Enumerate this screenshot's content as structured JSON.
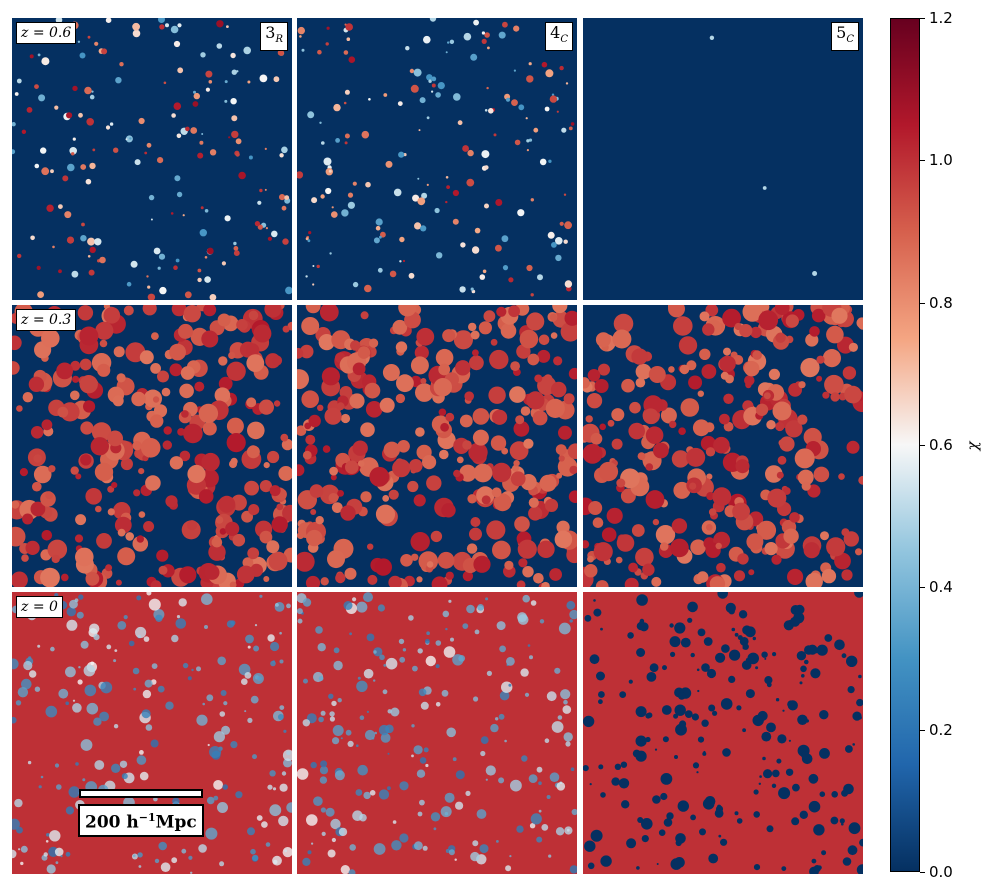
{
  "chart_data": {
    "type": "heatmap",
    "title": "",
    "layout": "3x3 panel grid of 2D field slices",
    "rows": [
      {
        "redshift_label": "z = 0.6"
      },
      {
        "redshift_label": "z = 0.3"
      },
      {
        "redshift_label": "z = 0"
      }
    ],
    "columns": [
      {
        "model": "3",
        "sub": "R"
      },
      {
        "model": "4",
        "sub": "C"
      },
      {
        "model": "5",
        "sub": "C"
      }
    ],
    "panel_mean_chi": [
      [
        0.08,
        0.08,
        0.0
      ],
      [
        0.62,
        0.66,
        0.68
      ],
      [
        0.93,
        0.95,
        0.82
      ]
    ],
    "scale_bar": {
      "label": "200 h",
      "unit_exp": "−1",
      "unit": "Mpc"
    },
    "colorbar": {
      "label": "χ",
      "range": [
        0.0,
        1.2
      ],
      "ticks": [
        "0.0",
        "0.2",
        "0.4",
        "0.6",
        "0.8",
        "1.0",
        "1.2"
      ],
      "colormap": "RdBu_r",
      "colors": [
        "#053061",
        "#2166ac",
        "#4393c3",
        "#92c5de",
        "#f7f7f7",
        "#f4a582",
        "#d6604d",
        "#b2182b",
        "#67001f"
      ]
    },
    "grid": false
  }
}
